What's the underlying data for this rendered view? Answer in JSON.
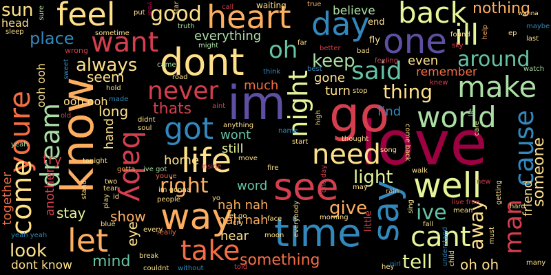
{
  "words": [
    {
      "text": "love",
      "color": "#9e0142"
    },
    {
      "text": "know",
      "color": "#fdae61"
    },
    {
      "text": "im",
      "color": "#5e4fa2"
    },
    {
      "text": "go",
      "color": "#d53e4f"
    },
    {
      "text": "dont",
      "color": "#fee08b"
    },
    {
      "text": "time",
      "color": "#3288bd"
    },
    {
      "text": "way",
      "color": "#fdae61"
    },
    {
      "text": "well",
      "color": "#e6f598"
    },
    {
      "text": "see",
      "color": "#d53e4f"
    },
    {
      "text": "say",
      "color": "#3288bd"
    },
    {
      "text": "feel",
      "color": "#fee08b"
    },
    {
      "text": "one",
      "color": "#5e4fa2"
    },
    {
      "text": "back",
      "color": "#e6f598"
    },
    {
      "text": "day",
      "color": "#3288bd"
    },
    {
      "text": "heart",
      "color": "#fdae61"
    },
    {
      "text": "good",
      "color": "#fee08b"
    },
    {
      "text": "want",
      "color": "#d53e4f"
    },
    {
      "text": "youre",
      "color": "#f46d43"
    },
    {
      "text": "make",
      "color": "#abdda4"
    },
    {
      "text": "said",
      "color": "#66c2a5"
    },
    {
      "text": "ill",
      "color": "#e6f598"
    },
    {
      "text": "oh",
      "color": "#66c2a5"
    },
    {
      "text": "never",
      "color": "#d53e4f"
    },
    {
      "text": "got",
      "color": "#3288bd"
    },
    {
      "text": "life",
      "color": "#fee08b"
    },
    {
      "text": "take",
      "color": "#f46d43"
    },
    {
      "text": "let",
      "color": "#fdae61"
    },
    {
      "text": "baby",
      "color": "#d53e4f"
    },
    {
      "text": "night",
      "color": "#e6f598"
    },
    {
      "text": "world",
      "color": "#abdda4"
    },
    {
      "text": "need",
      "color": "#fee08b"
    },
    {
      "text": "cant",
      "color": "#e6f598"
    },
    {
      "text": "come",
      "color": "#fee08b"
    },
    {
      "text": "dream",
      "color": "#abdda4"
    },
    {
      "text": "cause",
      "color": "#3288bd"
    },
    {
      "text": "man",
      "color": "#d53e4f"
    },
    {
      "text": "right",
      "color": "#fdae61"
    },
    {
      "text": "around",
      "color": "#66c2a5"
    },
    {
      "text": "always",
      "color": "#fee08b"
    },
    {
      "text": "place",
      "color": "#3288bd"
    },
    {
      "text": "thing",
      "color": "#fee08b"
    },
    {
      "text": "keep",
      "color": "#abdda4"
    },
    {
      "text": "light",
      "color": "#e6f598"
    },
    {
      "text": "away",
      "color": "#fee08b"
    },
    {
      "text": "give",
      "color": "#fdae61"
    },
    {
      "text": "ive",
      "color": "#66c2a5"
    },
    {
      "text": "tell",
      "color": "#e6f598"
    },
    {
      "text": "look",
      "color": "#fee08b"
    },
    {
      "text": "mind",
      "color": "#66c2a5"
    },
    {
      "text": "something",
      "color": "#f46d43"
    },
    {
      "text": "nothing",
      "color": "#fdae61"
    },
    {
      "text": "sun",
      "color": "#fee08b"
    },
    {
      "text": "head",
      "color": "#fee08b"
    },
    {
      "text": "everything",
      "color": "#abdda4"
    },
    {
      "text": "believe",
      "color": "#abdda4"
    },
    {
      "text": "even",
      "color": "#fee08b"
    },
    {
      "text": "remember",
      "color": "#f46d43"
    },
    {
      "text": "someone",
      "color": "#fee08b"
    },
    {
      "text": "friend",
      "color": "#fee08b"
    },
    {
      "text": "thats",
      "color": "#d53e4f"
    },
    {
      "text": "long",
      "color": "#fee08b"
    },
    {
      "text": "seem",
      "color": "#fee08b"
    },
    {
      "text": "much",
      "color": "#f46d43"
    },
    {
      "text": "wont",
      "color": "#66c2a5"
    },
    {
      "text": "still",
      "color": "#e6f598"
    },
    {
      "text": "word",
      "color": "#66c2a5"
    },
    {
      "text": "home",
      "color": "#fee08b"
    },
    {
      "text": "try",
      "color": "#d53e4f"
    },
    {
      "text": "stay",
      "color": "#e6f598"
    },
    {
      "text": "show",
      "color": "#fdae61"
    },
    {
      "text": "eye",
      "color": "#fee08b"
    },
    {
      "text": "hear",
      "color": "#fee08b"
    },
    {
      "text": "nah nah",
      "color": "#fdae61"
    },
    {
      "text": "nah nah",
      "color": "#fdae61"
    },
    {
      "text": "ooh ooh",
      "color": "#fee08b"
    },
    {
      "text": "ooh ooh",
      "color": "#fee08b"
    },
    {
      "text": "dont know",
      "color": "#fee08b"
    },
    {
      "text": "another",
      "color": "#d53e4f"
    },
    {
      "text": "together",
      "color": "#f46d43"
    },
    {
      "text": "oh oh",
      "color": "#fee08b"
    },
    {
      "text": "find",
      "color": "#3288bd"
    },
    {
      "text": "gone",
      "color": "#fee08b"
    },
    {
      "text": "turn",
      "color": "#fee08b"
    },
    {
      "text": "hand",
      "color": "#fee08b"
    },
    {
      "text": "end",
      "color": "#fee08b"
    },
    {
      "text": "fly",
      "color": "#fee08b"
    },
    {
      "text": "sure",
      "color": "#abdda4"
    },
    {
      "text": "sleep",
      "color": "#fee08b"
    },
    {
      "text": "sometime",
      "color": "#fee08b"
    },
    {
      "text": "wrong",
      "color": "#d53e4f"
    },
    {
      "text": "sweet",
      "color": "#3288bd"
    },
    {
      "text": "made",
      "color": "#3288bd"
    },
    {
      "text": "old",
      "color": "#d53e4f"
    },
    {
      "text": "yeah",
      "color": "#abdda4"
    },
    {
      "text": "put",
      "color": "#fee08b"
    },
    {
      "text": "year",
      "color": "#9e0142"
    },
    {
      "text": "call",
      "color": "#d53e4f"
    },
    {
      "text": "truth",
      "color": "#abdda4"
    },
    {
      "text": "might",
      "color": "#abdda4"
    },
    {
      "text": "star",
      "color": "#fee08b"
    },
    {
      "text": "waiting",
      "color": "#fee08b"
    },
    {
      "text": "true",
      "color": "#fdae61"
    },
    {
      "text": "far",
      "color": "#fee08b"
    },
    {
      "text": "better",
      "color": "#d53e4f"
    },
    {
      "text": "bad",
      "color": "#fee08b"
    },
    {
      "text": "feeling",
      "color": "#d53e4f"
    },
    {
      "text": "best",
      "color": "#3288bd"
    },
    {
      "text": "think",
      "color": "#3288bd"
    },
    {
      "text": "knew",
      "color": "#d53e4f"
    },
    {
      "text": "found",
      "color": "#fee08b"
    },
    {
      "text": "help",
      "color": "#fdae61"
    },
    {
      "text": "ep",
      "color": "#fee08b"
    },
    {
      "text": "last",
      "color": "#fee08b"
    },
    {
      "text": "maybe",
      "color": "#3288bd"
    },
    {
      "text": "wanna",
      "color": "#fee08b"
    },
    {
      "text": "sky",
      "color": "#d53e4f"
    },
    {
      "text": "watch",
      "color": "#abdda4"
    },
    {
      "text": "came",
      "color": "#abdda4"
    },
    {
      "text": "road",
      "color": "#fee08b"
    },
    {
      "text": "hold",
      "color": "#fee08b"
    },
    {
      "text": "didnt",
      "color": "#fee08b"
    },
    {
      "text": "soul",
      "color": "#fee08b"
    },
    {
      "text": "aint",
      "color": "#d53e4f"
    },
    {
      "text": "anything",
      "color": "#fee08b"
    },
    {
      "text": "name",
      "color": "#3288bd"
    },
    {
      "text": "stop",
      "color": "#fee08b"
    },
    {
      "text": "high",
      "color": "#fee08b"
    },
    {
      "text": "thought",
      "color": "#fee08b"
    },
    {
      "text": "start",
      "color": "#fee08b"
    },
    {
      "text": "lie",
      "color": "#abdda4"
    },
    {
      "text": "care",
      "color": "#e6f598"
    },
    {
      "text": "song",
      "color": "#fee08b"
    },
    {
      "text": "tonight",
      "color": "#fee08b"
    },
    {
      "text": "gotta",
      "color": "#fdae61"
    },
    {
      "text": "ive got",
      "color": "#abdda4"
    },
    {
      "text": "two",
      "color": "#fee08b"
    },
    {
      "text": "tear",
      "color": "#fee08b"
    },
    {
      "text": "stand",
      "color": "#fee08b"
    },
    {
      "text": "play",
      "color": "#fee08b"
    },
    {
      "text": "id",
      "color": "#fee08b"
    },
    {
      "text": "youve",
      "color": "#f46d43"
    },
    {
      "text": "inside",
      "color": "#d53e4f"
    },
    {
      "text": "move",
      "color": "#fee08b"
    },
    {
      "text": "fire",
      "color": "#fee08b"
    },
    {
      "text": "one day",
      "color": "#d53e4f"
    },
    {
      "text": "come back",
      "color": "#fee08b"
    },
    {
      "text": "walk",
      "color": "#fee08b"
    },
    {
      "text": "may",
      "color": "#fee08b"
    },
    {
      "text": "rain",
      "color": "#fdae61"
    },
    {
      "text": "new",
      "color": "#d53e4f"
    },
    {
      "text": "getting",
      "color": "#fee08b"
    },
    {
      "text": "im gonna",
      "color": "#fee08b"
    },
    {
      "text": "people",
      "color": "#fee08b"
    },
    {
      "text": "yo",
      "color": "#fee08b"
    },
    {
      "text": "let go",
      "color": "#fee08b"
    },
    {
      "text": "cry",
      "color": "#fee08b"
    },
    {
      "text": "face",
      "color": "#fee08b"
    },
    {
      "text": "everybody",
      "color": "#fee08b"
    },
    {
      "text": "little",
      "color": "#d53e4f"
    },
    {
      "text": "morning",
      "color": "#fee08b"
    },
    {
      "text": "sing",
      "color": "#fee08b"
    },
    {
      "text": "live free",
      "color": "#d53e4f"
    },
    {
      "text": "mean",
      "color": "#fee08b"
    },
    {
      "text": "fall",
      "color": "#fee08b"
    },
    {
      "text": "hard",
      "color": "#fee08b"
    },
    {
      "text": "must",
      "color": "#fee08b"
    },
    {
      "text": "understand",
      "color": "#3288bd"
    },
    {
      "text": "child",
      "color": "#fee08b"
    },
    {
      "text": "many",
      "color": "#fee08b"
    },
    {
      "text": "yeah yeah",
      "color": "#3288bd"
    },
    {
      "text": "blue",
      "color": "#fee08b"
    },
    {
      "text": "every",
      "color": "#fee08b"
    },
    {
      "text": "really",
      "color": "#f46d43"
    },
    {
      "text": "break",
      "color": "#fee08b"
    },
    {
      "text": "couldnt",
      "color": "#fee08b"
    },
    {
      "text": "without",
      "color": "#3288bd"
    },
    {
      "text": "moon",
      "color": "#fee08b"
    },
    {
      "text": "told",
      "color": "#d53e4f"
    },
    {
      "text": "hey",
      "color": "#fee08b"
    },
    {
      "text": "girl",
      "color": "#3288bd"
    }
  ]
}
